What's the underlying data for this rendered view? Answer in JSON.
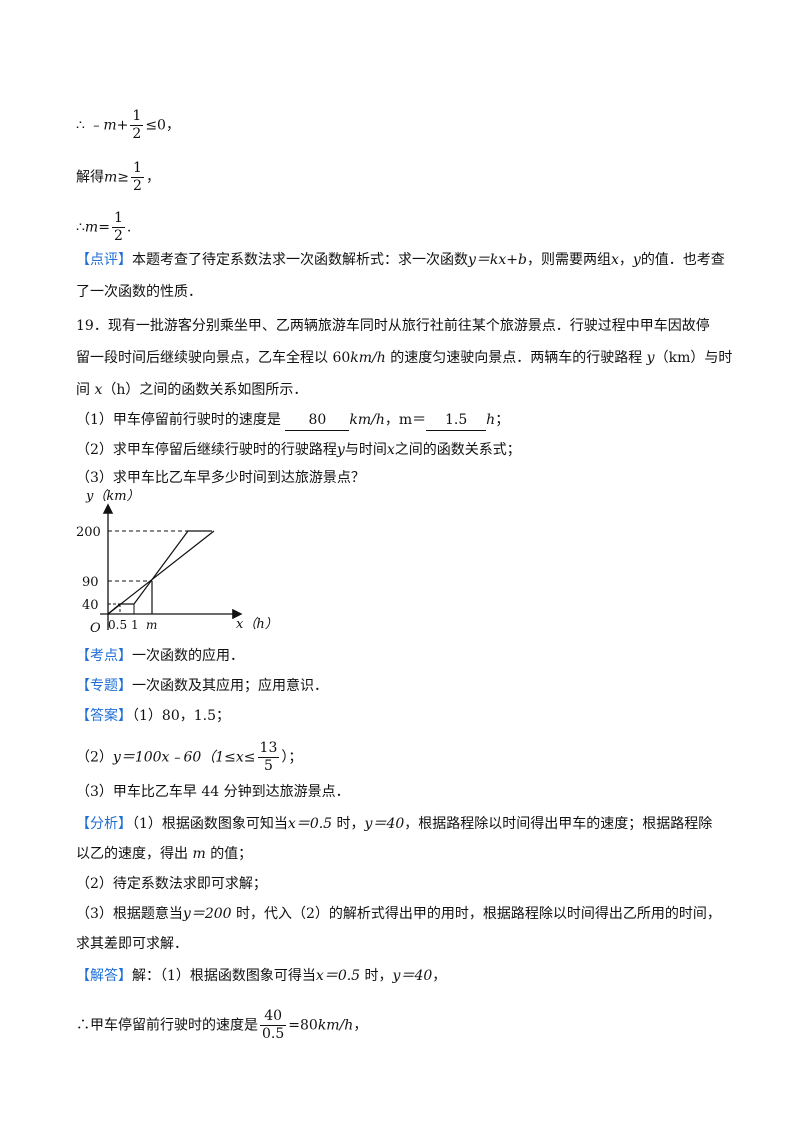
{
  "l1": {
    "therefore": "∴",
    "pre": "﹣",
    "var": "m",
    "plus": "+",
    "num": "1",
    "den": "2",
    "post": "≤0，"
  },
  "l2": {
    "text": "解得",
    "var": "m",
    "ge": "≥",
    "num": "1",
    "den": "2",
    "post": "，"
  },
  "l3": {
    "therefore": "∴",
    "var": "m",
    "eq": "=",
    "num": "1",
    "den": "2",
    "post": "."
  },
  "comment": {
    "tag": "【点评】",
    "line1_pre": "本题考查了待定系数法求一次函数解析式：求一次函数",
    "line1_formula": "y＝kx+b",
    "line1_mid": "，则需要两组",
    "x": "x",
    "comma": "，",
    "y": "y",
    "line1_post": "的值．也考查",
    "line2": "了一次函数的性质．"
  },
  "q19": {
    "line1": "19．现有一批游客分别乘坐甲、乙两辆旅游车同时从旅行社前往某个旅游景点．行驶过程中甲车因故停",
    "line2_pre": "留一段时间后继续驶向景点，乙车全程以 60",
    "line2_unit": "km/h",
    "line2_mid": " 的速度匀速驶向景点．两辆车的行驶路程 ",
    "line2_y": "y",
    "line2_unit2": "（km）",
    "line2_post": "与时",
    "line3_pre": "间 ",
    "line3_x": "x",
    "line3_post": "（h）之间的函数关系如图所示．",
    "p1_pre": "（1）甲车停留前行驶时的速度是",
    "p1_ans1": "80",
    "p1_unit": "km/h",
    "p1_m": "，m＝",
    "p1_ans2": "1.5",
    "p1_h": "h",
    "p1_end": "；",
    "p2_pre": "（2）求甲车停留后继续行驶时的行驶路程",
    "p2_y": "y",
    "p2_mid": "与时间",
    "p2_x": "x",
    "p2_post": "之间的函数关系式；",
    "p3": "（3）求甲车比乙车早多少时间到达旅游景点？"
  },
  "graph": {
    "ylabel": "y（km）",
    "xlabel": "x（h）",
    "origin": "O",
    "yticks": [
      "200",
      "90",
      "40"
    ],
    "xticks": [
      "0.5",
      "1",
      "m"
    ]
  },
  "kaodian": {
    "tag": "【考点】",
    "text": "一次函数的应用．"
  },
  "zhuanti": {
    "tag": "【专题】",
    "text": "一次函数及其应用；应用意识．"
  },
  "daan": {
    "tag": "【答案】",
    "a1": "（1）80，1.5；",
    "a2_pre": "（2）",
    "a2_formula": "y＝100x﹣60（1≤x≤",
    "a2_num": "13",
    "a2_den": "5",
    "a2_post": "）；",
    "a3": "（3）甲车比乙车早 44 分钟到达旅游景点．"
  },
  "fenxi": {
    "tag": "【分析】",
    "l1_pre": "（1）根据函数图象可知当",
    "l1_cond": "x＝0.5",
    "l1_mid": " 时，",
    "l1_cond2": "y＝40",
    "l1_post": "，根据路程除以时间得出甲车的速度；根据路程除",
    "l2_pre": "以乙的速度，得出",
    "l2_m": " m ",
    "l2_post": "的值；",
    "l3": "（2）待定系数法求即可求解；",
    "l4_pre": "（3）根据题意当",
    "l4_cond": "y＝200",
    "l4_post": " 时，代入（2）的解析式得出甲的用时，根据路程除以时间得出乙所用的时间，",
    "l5": "求其差即可求解．"
  },
  "jieda": {
    "tag": "【解答】",
    "l1_pre": "解：（1）根据函数图象可得当",
    "l1_cond": "x＝0.5",
    "l1_mid": " 时，",
    "l1_cond2": "y＝40",
    "l1_post": "，",
    "l2_pre": "∴甲车停留前行驶时的速度是",
    "l2_num": "40",
    "l2_den": "0.5",
    "l2_post": "=80",
    "l2_unit": "km/h",
    "l2_end": "，"
  }
}
